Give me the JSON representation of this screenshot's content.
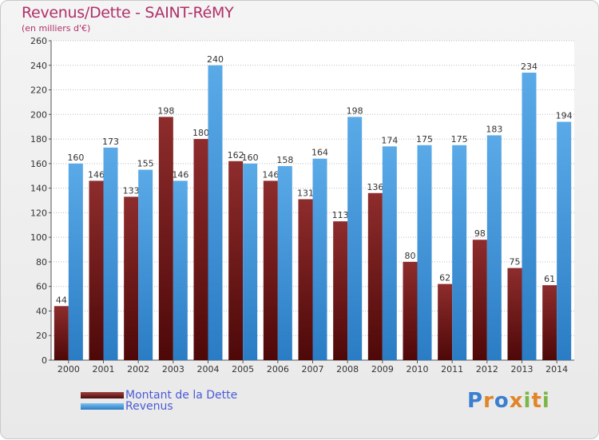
{
  "chart_data": {
    "type": "bar",
    "title": "Revenus/Dette - SAINT-RéMY",
    "subtitle": "(en milliers d'€)",
    "categories": [
      "2000",
      "2001",
      "2002",
      "2003",
      "2004",
      "2005",
      "2006",
      "2007",
      "2008",
      "2009",
      "2010",
      "2011",
      "2012",
      "2013",
      "2014"
    ],
    "series": [
      {
        "name": "Montant de la Dette",
        "color": "#7a1e1e",
        "values": [
          44,
          146,
          133,
          198,
          180,
          162,
          146,
          131,
          113,
          136,
          80,
          62,
          98,
          75,
          61
        ]
      },
      {
        "name": "Revenus",
        "color": "#3d96dc",
        "values": [
          160,
          173,
          155,
          146,
          240,
          160,
          158,
          164,
          198,
          174,
          175,
          175,
          183,
          234,
          194
        ]
      }
    ],
    "ylim": [
      0,
      260
    ],
    "yticks": [
      0,
      20,
      40,
      60,
      80,
      100,
      120,
      140,
      160,
      180,
      200,
      220,
      240,
      260
    ],
    "grid": true,
    "legend_position": "bottom-left"
  },
  "brand": {
    "logo_letters": [
      "P",
      "r",
      "o",
      "x",
      "i",
      "t",
      "i"
    ],
    "logo_colors": [
      "#3a7fd0",
      "#e0852a",
      "#3a7fd0",
      "#e0852a",
      "#7ab648",
      "#e0852a",
      "#7ab648"
    ]
  }
}
